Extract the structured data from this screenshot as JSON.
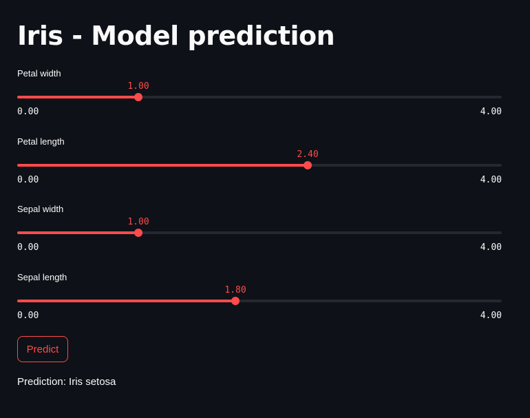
{
  "title": "Iris - Model prediction",
  "colors": {
    "background": "#0e1117",
    "accent": "#ff4b4b",
    "track": "#262730",
    "text": "#fafafa"
  },
  "sliders": [
    {
      "label": "Petal width",
      "value": 1.0,
      "value_text": "1.00",
      "min": 0,
      "max": 4,
      "min_text": "0.00",
      "max_text": "4.00"
    },
    {
      "label": "Petal length",
      "value": 2.4,
      "value_text": "2.40",
      "min": 0,
      "max": 4,
      "min_text": "0.00",
      "max_text": "4.00"
    },
    {
      "label": "Sepal width",
      "value": 1.0,
      "value_text": "1.00",
      "min": 0,
      "max": 4,
      "min_text": "0.00",
      "max_text": "4.00"
    },
    {
      "label": "Sepal length",
      "value": 1.8,
      "value_text": "1.80",
      "min": 0,
      "max": 4,
      "min_text": "0.00",
      "max_text": "4.00"
    }
  ],
  "predict_button": {
    "label": "Predict"
  },
  "prediction": {
    "text": "Prediction: Iris setosa"
  }
}
